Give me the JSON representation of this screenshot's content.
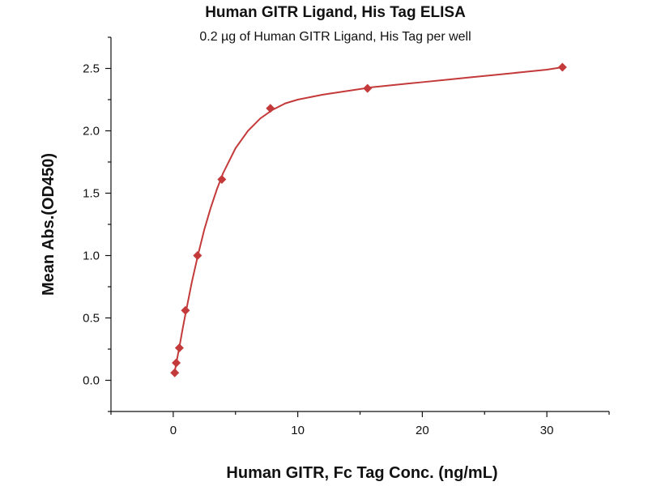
{
  "chart_data": {
    "type": "scatter",
    "title": "Human GITR Ligand, His Tag ELISA",
    "subtitle": "0.2 µg of Human GITR Ligand, His Tag per well",
    "xlabel": "Human GITR, Fc Tag Conc. (ng/mL)",
    "ylabel": "Mean Abs.(OD450)",
    "xlim": [
      -5,
      35
    ],
    "ylim": [
      -0.25,
      2.75
    ],
    "x_ticks": [
      0,
      10,
      20,
      30
    ],
    "x_tick_labels": [
      "0",
      "10",
      "20",
      "30"
    ],
    "y_ticks": [
      0.0,
      0.5,
      1.0,
      1.5,
      2.0,
      2.5
    ],
    "y_tick_labels": [
      "0.0",
      "0.5",
      "1.0",
      "1.5",
      "2.0",
      "2.5"
    ],
    "grid": false,
    "series": [
      {
        "color": "#c43a3a",
        "marker": "diamond",
        "x": [
          0.12,
          0.24,
          0.49,
          0.98,
          1.95,
          3.9,
          7.8,
          15.6,
          31.25
        ],
        "y": [
          0.06,
          0.14,
          0.26,
          0.56,
          1.0,
          1.61,
          2.18,
          2.34,
          2.51
        ]
      }
    ],
    "fit_curve": {
      "color": "#c43a3a",
      "x": [
        0.12,
        0.25,
        0.5,
        0.75,
        1,
        1.5,
        2,
        2.5,
        3,
        3.5,
        4,
        5,
        6,
        7,
        8,
        9,
        10,
        12,
        14,
        16,
        18,
        20,
        22,
        24,
        26,
        28,
        30,
        31.25
      ],
      "y": [
        0.07,
        0.14,
        0.27,
        0.41,
        0.54,
        0.79,
        1.01,
        1.21,
        1.38,
        1.53,
        1.66,
        1.86,
        2.0,
        2.1,
        2.17,
        2.22,
        2.25,
        2.29,
        2.32,
        2.35,
        2.37,
        2.39,
        2.41,
        2.43,
        2.45,
        2.47,
        2.49,
        2.51
      ]
    }
  }
}
